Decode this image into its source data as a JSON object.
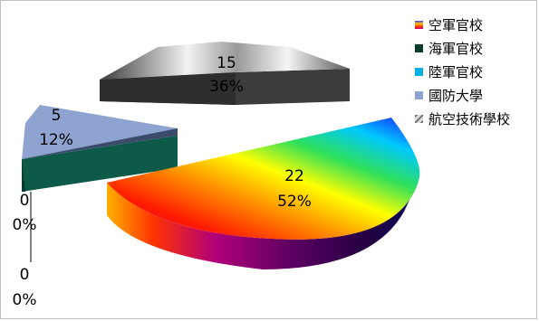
{
  "chart_data": {
    "type": "pie",
    "style": "3d-exploded",
    "legend_position": "right",
    "slices": [
      {
        "category": "空軍官校",
        "value": 22,
        "percent": "52%",
        "color": "rainbow"
      },
      {
        "category": "海軍官校",
        "value": 0,
        "percent": "0%",
        "color": "#0b5a44"
      },
      {
        "category": "陸軍官校",
        "value": 0,
        "percent": "0%",
        "color": "#00b0e0"
      },
      {
        "category": "國防大學",
        "value": 5,
        "percent": "12%",
        "color": "#8ea3cf"
      },
      {
        "category": "航空技術學校",
        "value": 15,
        "percent": "36%",
        "color": "#7f7f7f"
      }
    ]
  },
  "legend": {
    "items": [
      {
        "label": "空軍官校",
        "icon": "rainbow-swatch",
        "color": "#ff6a00"
      },
      {
        "label": "海軍官校",
        "icon": "swatch",
        "color": "#0b3d2a"
      },
      {
        "label": "陸軍官校",
        "icon": "swatch",
        "color": "#00b0e0"
      },
      {
        "label": "國防大學",
        "icon": "swatch",
        "color": "#8ea3cf"
      },
      {
        "label": "航空技術學校",
        "icon": "hatched-swatch",
        "color": "#7f7f7f"
      }
    ]
  }
}
